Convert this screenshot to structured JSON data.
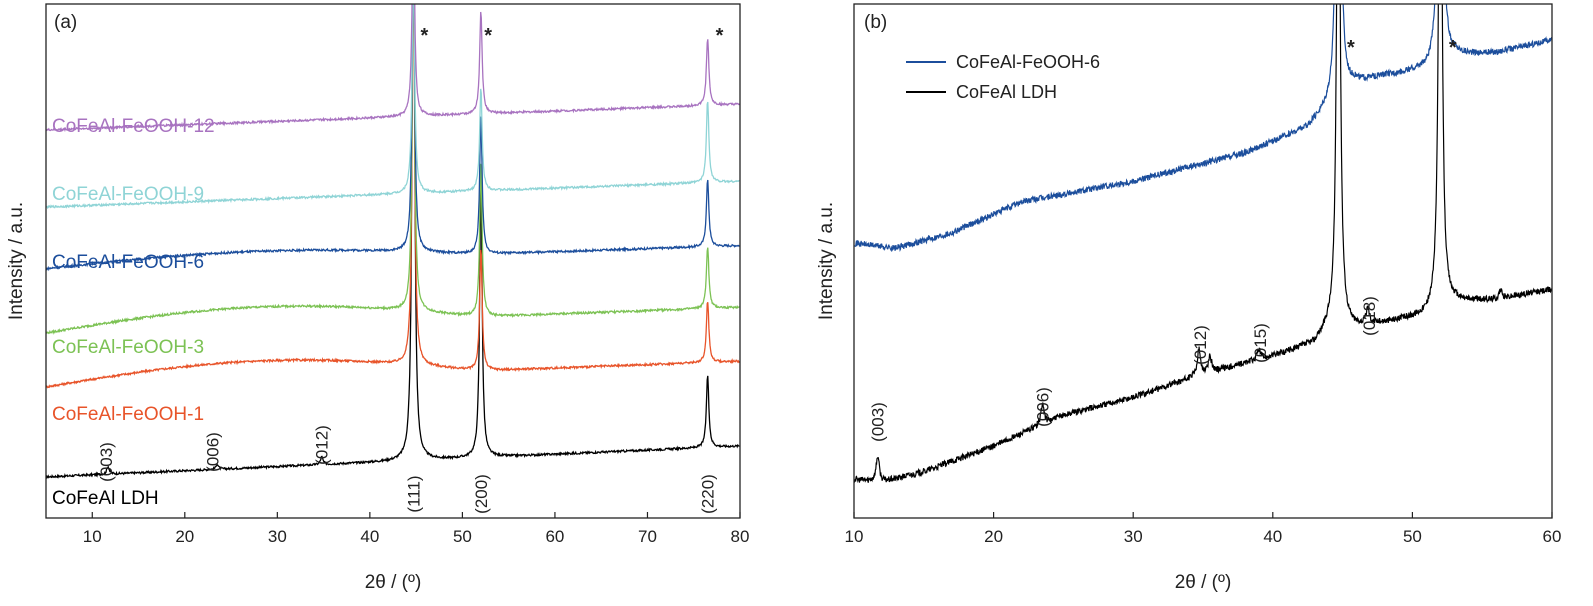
{
  "chart_data": [
    {
      "type": "line",
      "panel_label": "(a)",
      "xlabel": "2θ / (º)",
      "ylabel": "Intensity / a.u.",
      "xlim": [
        5,
        80
      ],
      "xticks": [
        10,
        20,
        30,
        40,
        50,
        60,
        70,
        80
      ],
      "grid": false,
      "series": [
        {
          "name": "CoFeAl LDH",
          "color": "#000000",
          "baseline_y": 0.08,
          "slope": 0.06,
          "hump": 0.0,
          "peaks": [
            [
              11.7,
              0.015
            ],
            [
              23.5,
              0.01
            ],
            [
              34.8,
              0.015
            ],
            [
              44.7,
              1.2
            ],
            [
              52.0,
              0.55
            ],
            [
              76.5,
              0.14
            ]
          ]
        },
        {
          "name": "CoFeAl-FeOOH-1",
          "color": "#e8542a",
          "baseline_y": 0.255,
          "slope": 0.05,
          "hump": 0.035,
          "peaks": [
            [
              44.7,
              0.8
            ],
            [
              52.0,
              0.24
            ],
            [
              76.5,
              0.12
            ]
          ]
        },
        {
          "name": "CoFeAl-FeOOH-3",
          "color": "#7cc254",
          "baseline_y": 0.36,
          "slope": 0.05,
          "hump": 0.035,
          "peaks": [
            [
              44.7,
              0.7
            ],
            [
              52.0,
              0.3
            ],
            [
              76.5,
              0.12
            ]
          ]
        },
        {
          "name": "CoFeAl-FeOOH-6",
          "color": "#1c4e9c",
          "baseline_y": 0.485,
          "slope": 0.045,
          "hump": 0.02,
          "peaks": [
            [
              44.7,
              0.6
            ],
            [
              52.0,
              0.27
            ],
            [
              76.5,
              0.13
            ]
          ]
        },
        {
          "name": "CoFeAl-FeOOH-9",
          "color": "#8fd4d6",
          "baseline_y": 0.605,
          "slope": 0.05,
          "hump": 0.0,
          "peaks": [
            [
              44.7,
              0.45
            ],
            [
              52.0,
              0.2
            ],
            [
              76.5,
              0.16
            ]
          ]
        },
        {
          "name": "CoFeAl-FeOOH-12",
          "color": "#a873c0",
          "baseline_y": 0.755,
          "slope": 0.05,
          "hump": 0.0,
          "peaks": [
            [
              44.7,
              0.4
            ],
            [
              52.0,
              0.2
            ],
            [
              76.5,
              0.13
            ]
          ]
        }
      ],
      "annotations": {
        "hkl": [
          {
            "text": "(003)",
            "x": 11.5
          },
          {
            "text": "(006)",
            "x": 23.0
          },
          {
            "text": "(012)",
            "x": 34.8
          },
          {
            "text": "(111)",
            "x": 44.7
          },
          {
            "text": "(200)",
            "x": 52.0
          },
          {
            "text": "(220)",
            "x": 76.5
          }
        ],
        "stars": [
          45.9,
          52.8,
          77.8
        ],
        "star_text": "*"
      }
    },
    {
      "type": "line",
      "panel_label": "(b)",
      "xlabel": "2θ / (º)",
      "ylabel": "Intensity / a.u.",
      "xlim": [
        10,
        60
      ],
      "xticks": [
        10,
        20,
        30,
        40,
        50,
        60
      ],
      "grid": false,
      "legend_position": "top-left",
      "series": [
        {
          "name": "CoFeAl-FeOOH-6",
          "color": "#1c4e9c",
          "baseline_points": [
            [
              10,
              0.535
            ],
            [
              13,
              0.525
            ],
            [
              17,
              0.555
            ],
            [
              22,
              0.615
            ],
            [
              30,
              0.655
            ],
            [
              38,
              0.71
            ],
            [
              42.5,
              0.76
            ],
            [
              44,
              0.8
            ]
          ],
          "post_points": [
            [
              45.8,
              0.845
            ],
            [
              48,
              0.86
            ],
            [
              51.5,
              0.875
            ],
            [
              53,
              0.9
            ],
            [
              56,
              0.905
            ],
            [
              60,
              0.93
            ]
          ],
          "peaks": [
            [
              44.7,
              1.2
            ],
            [
              52.0,
              1.2
            ]
          ]
        },
        {
          "name": "CoFeAl LDH",
          "color": "#000000",
          "baseline_points": [
            [
              10,
              0.075
            ],
            [
              12,
              0.07
            ],
            [
              15,
              0.09
            ],
            [
              20,
              0.14
            ],
            [
              25,
              0.2
            ],
            [
              30,
              0.235
            ],
            [
              35,
              0.28
            ],
            [
              40,
              0.315
            ],
            [
              43,
              0.34
            ],
            [
              44,
              0.37
            ]
          ],
          "post_points": [
            [
              45.8,
              0.37
            ],
            [
              48,
              0.38
            ],
            [
              51,
              0.395
            ],
            [
              53,
              0.42
            ],
            [
              56,
              0.425
            ],
            [
              60,
              0.445
            ]
          ],
          "peaks": [
            [
              11.7,
              0.05
            ],
            [
              23.5,
              0.04
            ],
            [
              34.7,
              0.05
            ],
            [
              35.5,
              0.03
            ],
            [
              39.0,
              0.02
            ],
            [
              46.8,
              0.03
            ],
            [
              44.7,
              1.2
            ],
            [
              52.0,
              1.2
            ],
            [
              56.3,
              0.015
            ]
          ]
        }
      ],
      "annotations": {
        "hkl": [
          {
            "text": "(003)",
            "x": 11.7
          },
          {
            "text": "(006)",
            "x": 23.5
          },
          {
            "text": "(012)",
            "x": 34.8
          },
          {
            "text": "(015)",
            "x": 39.1
          },
          {
            "text": "(018)",
            "x": 46.9
          }
        ],
        "stars": [
          45.6,
          52.9
        ],
        "star_text": "*"
      }
    }
  ]
}
